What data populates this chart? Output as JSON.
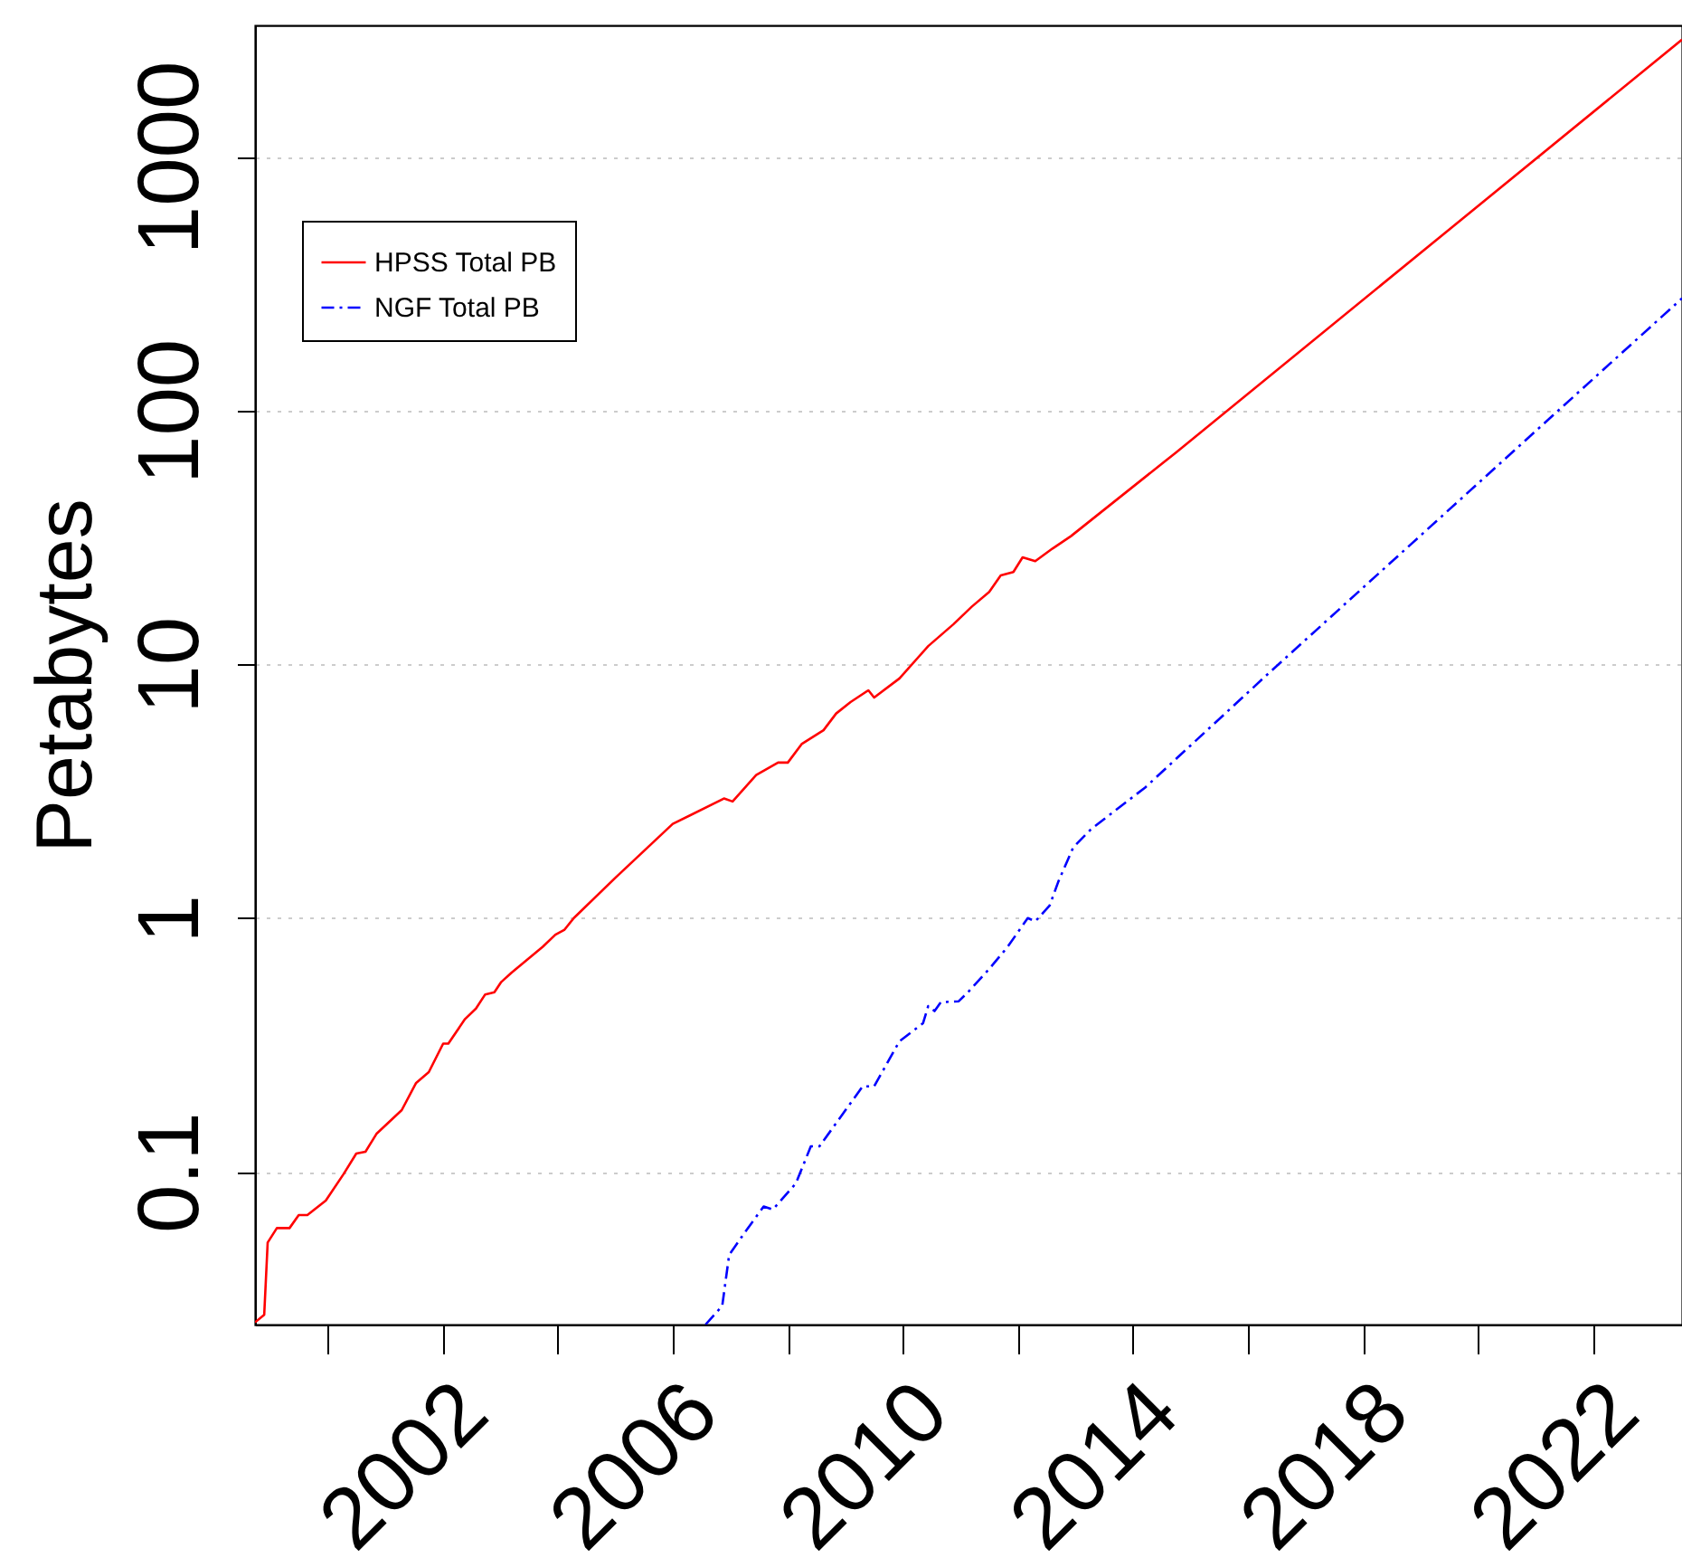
{
  "chart_data": {
    "type": "line",
    "ylabel": "Petabytes",
    "log": "y",
    "grid": "y",
    "legend": "top left",
    "xlim": [
      1998.74,
      2023.54
    ],
    "ylim": [
      0.025,
      3300
    ],
    "xticks": [
      {
        "value": 2000,
        "label": null
      },
      2002,
      {
        "value": 2004,
        "label": null
      },
      2006,
      {
        "value": 2008,
        "label": null
      },
      2010,
      {
        "value": 2012,
        "label": null
      },
      2014,
      {
        "value": 2016,
        "label": null
      },
      2018,
      {
        "value": 2020,
        "label": null
      },
      2022
    ],
    "yticks": [
      0.1,
      1,
      10,
      100,
      1000
    ],
    "series": [
      {
        "name": "HPSS Total PB",
        "color": "#ff0000",
        "line_style": "solid",
        "x": [
          1998.74,
          1998.9,
          1998.96,
          1999.12,
          1999.34,
          1999.5,
          1999.65,
          1999.97,
          2000.28,
          2000.5,
          2000.66,
          2000.85,
          2001.29,
          2001.54,
          2001.76,
          2002.01,
          2002.1,
          2002.39,
          2002.58,
          2002.74,
          2002.9,
          2003.02,
          2003.2,
          2003.74,
          2003.96,
          2004.12,
          2004.28,
          2005.0,
          2006.0,
          2006.89,
          2007.04,
          2007.45,
          2007.83,
          2008.0,
          2008.24,
          2008.62,
          2008.84,
          2009.09,
          2009.4,
          2009.5,
          2009.94,
          2010.44,
          2010.88,
          2011.2,
          2011.5,
          2011.7,
          2011.92,
          2012.08,
          2012.3,
          2012.6,
          2012.92,
          2014.75,
          2023.54
        ],
        "values": [
          0.0255,
          0.0273,
          0.0526,
          0.06,
          0.06,
          0.0675,
          0.0675,
          0.077,
          0.098,
          0.118,
          0.12,
          0.141,
          0.175,
          0.224,
          0.247,
          0.32,
          0.32,
          0.4,
          0.44,
          0.5,
          0.51,
          0.56,
          0.61,
          0.77,
          0.86,
          0.9,
          1.0,
          1.44,
          2.35,
          2.96,
          2.88,
          3.66,
          4.1,
          4.1,
          4.85,
          5.5,
          6.4,
          7.1,
          7.9,
          7.4,
          8.8,
          11.8,
          14.4,
          16.9,
          19.3,
          22.4,
          23.1,
          26.4,
          25.5,
          28.6,
          32,
          68.5,
          2900
        ]
      },
      {
        "name": "NGF Total PB",
        "color": "#0000ff",
        "line_style": "dashed",
        "x": [
          2006.57,
          2006.86,
          2006.98,
          2007.26,
          2007.58,
          2007.74,
          2008.14,
          2008.4,
          2008.55,
          2009.3,
          2009.5,
          2009.94,
          2010.35,
          2010.44,
          2010.55,
          2010.66,
          2010.97,
          2011.13,
          2011.5,
          2011.82,
          2012.17,
          2012.3,
          2012.55,
          2012.7,
          2012.96,
          2013.27,
          2014.21,
          2016.32,
          2023.54
        ],
        "values": [
          0.025,
          0.0296,
          0.047,
          0.058,
          0.073,
          0.071,
          0.09,
          0.126,
          0.126,
          0.217,
          0.217,
          0.327,
          0.385,
          0.45,
          0.43,
          0.466,
          0.47,
          0.51,
          0.63,
          0.77,
          1.0,
          0.97,
          1.12,
          1.39,
          1.9,
          2.24,
          3.27,
          9.06,
          277
        ]
      }
    ]
  }
}
